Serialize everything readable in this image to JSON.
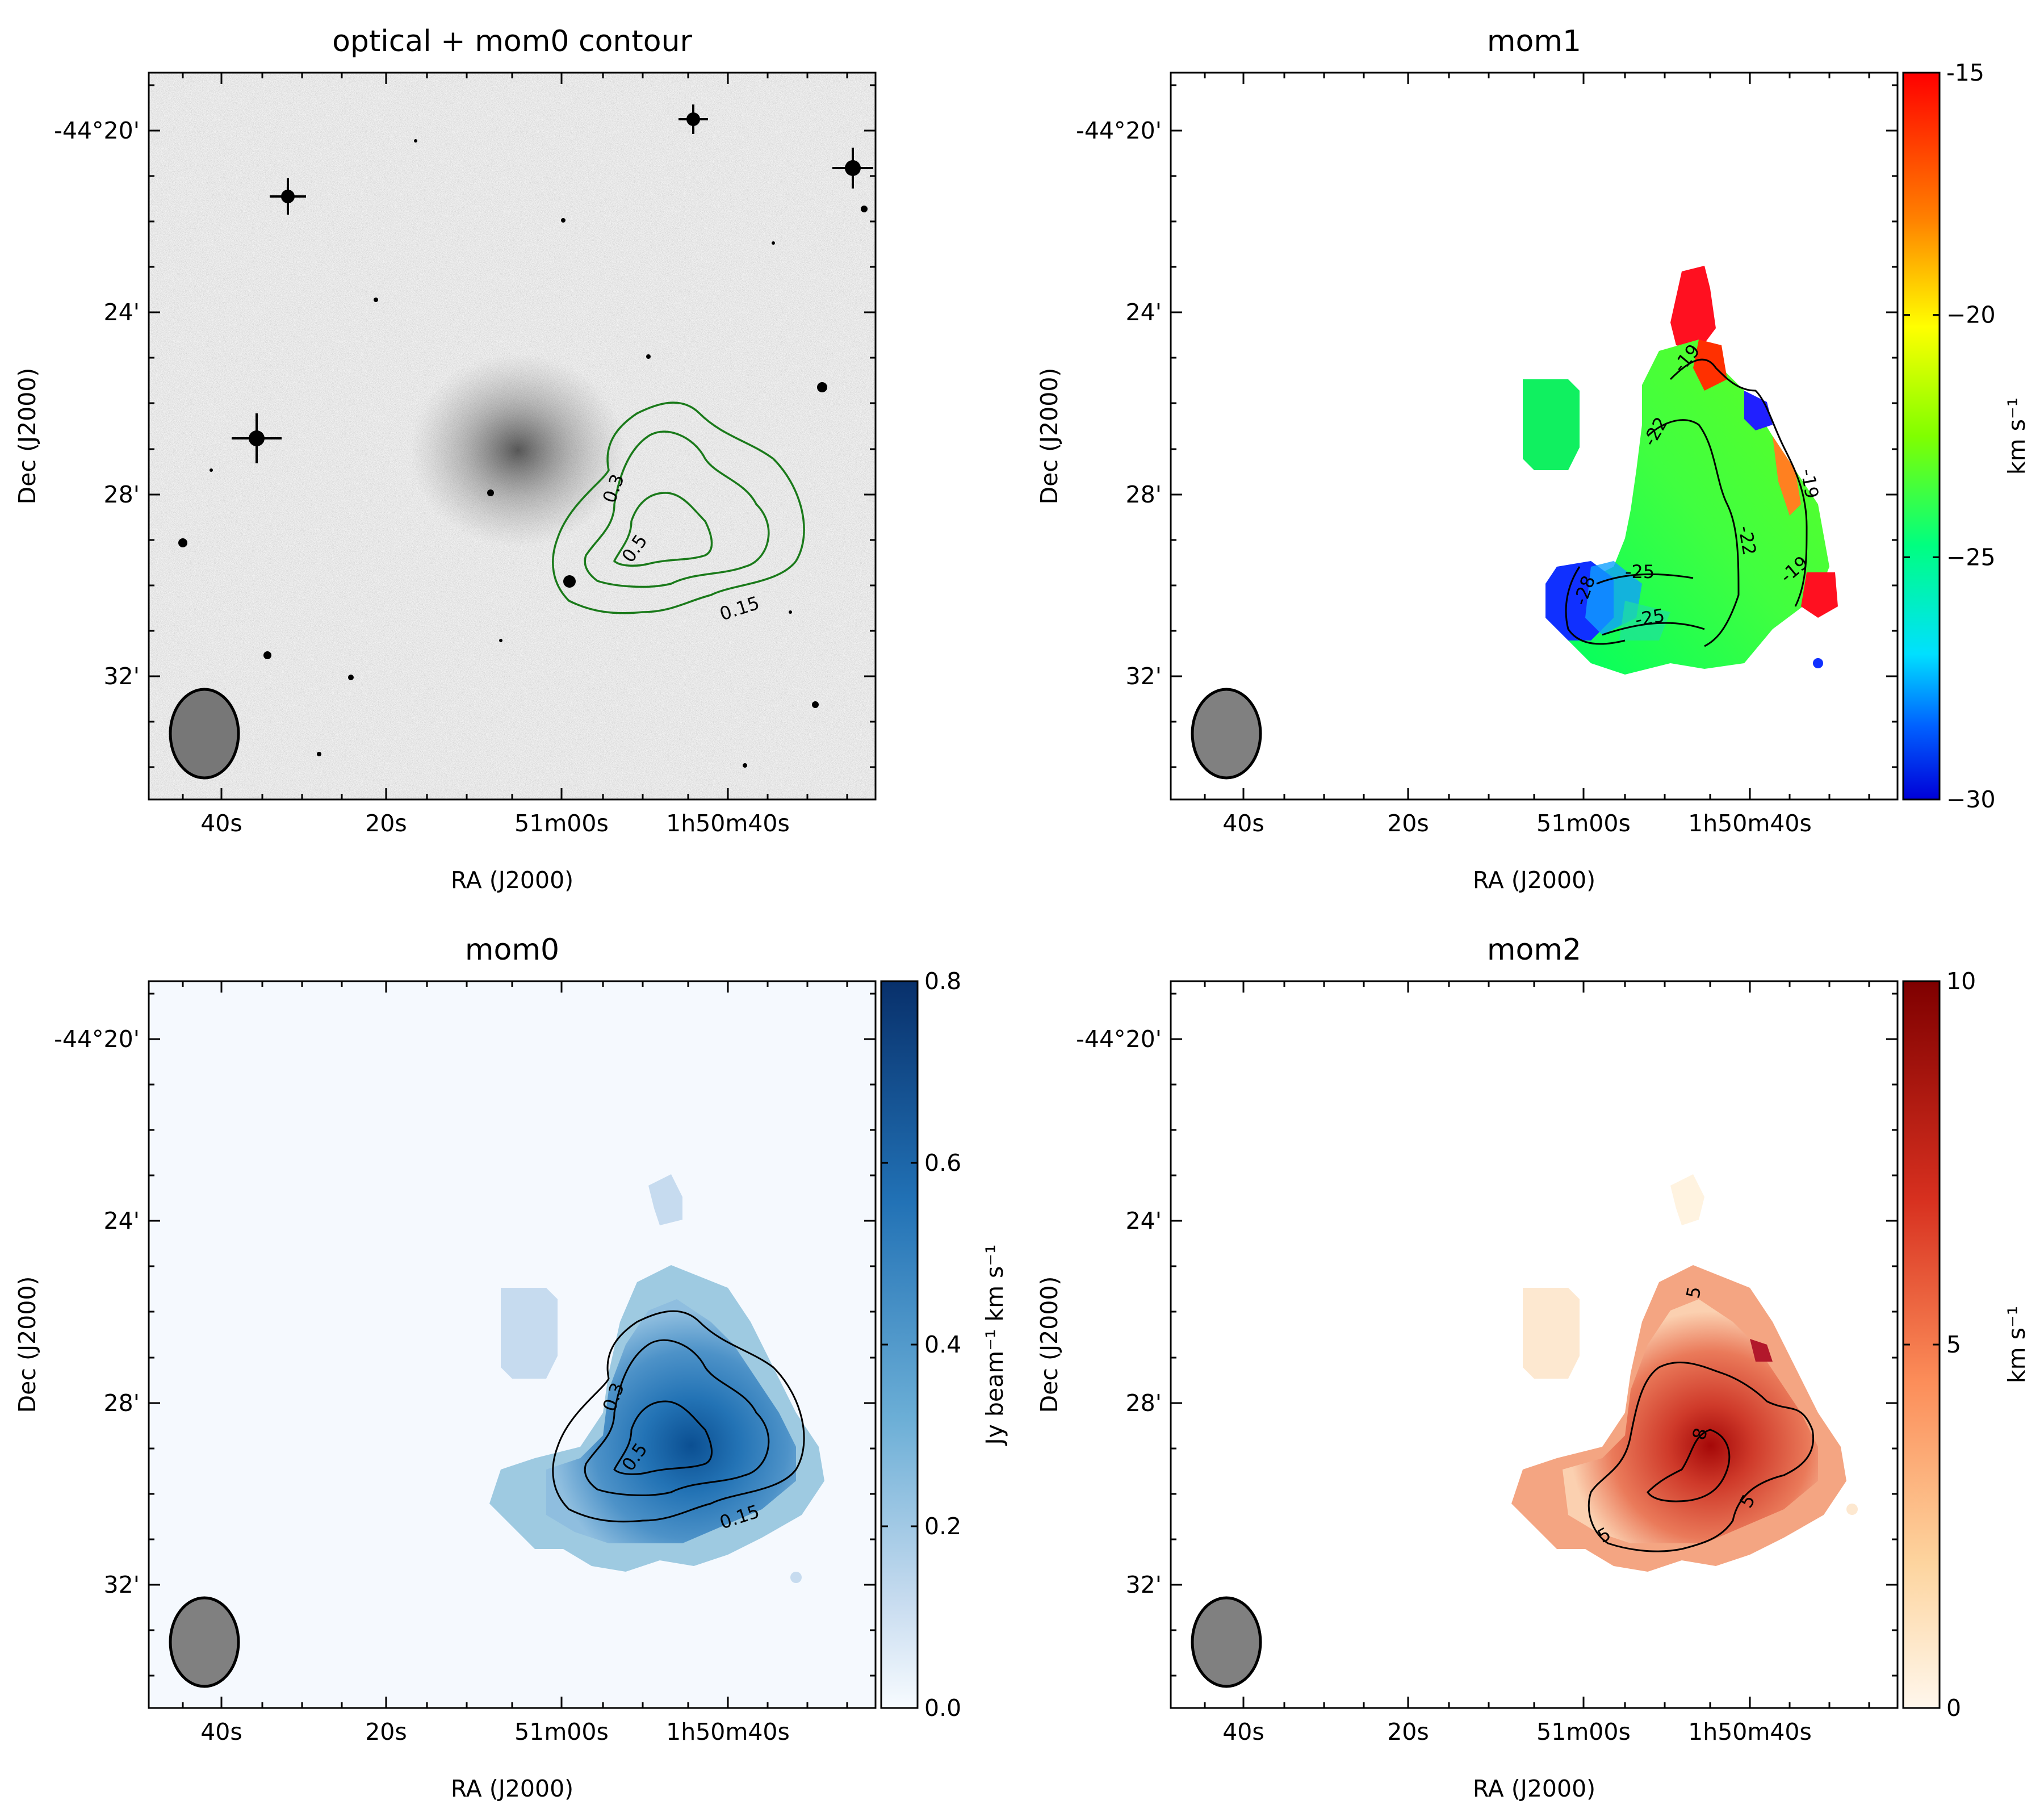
{
  "panels": [
    {
      "id": "optical",
      "title": "optical + mom0 contour",
      "xlabel": "RA (J2000)",
      "ylabel": "Dec (J2000)",
      "xticks": [
        "40s",
        "20s",
        "51m00s",
        "1h50m40s"
      ],
      "yticks": [
        "-44°20'",
        "24'",
        "28'",
        "32'"
      ],
      "contour_levels": [
        "0.15",
        "0.3",
        "0.5"
      ],
      "contour_color": "#1a7a1a",
      "colorbar": null
    },
    {
      "id": "mom1",
      "title": "mom1",
      "xlabel": "RA (J2000)",
      "ylabel": "Dec (J2000)",
      "xticks": [
        "40s",
        "20s",
        "51m00s",
        "1h50m40s"
      ],
      "yticks": [
        "-44°20'",
        "24'",
        "28'",
        "32'"
      ],
      "contour_levels": [
        "-19",
        "-22",
        "-25",
        "-28"
      ],
      "colorbar": {
        "label": "km s⁻¹",
        "ticks": [
          "-15",
          "−20",
          "−25",
          "−30"
        ],
        "range": [
          -30,
          -15
        ],
        "colormap": "jet"
      }
    },
    {
      "id": "mom0",
      "title": "mom0",
      "xlabel": "RA (J2000)",
      "ylabel": "Dec (J2000)",
      "xticks": [
        "40s",
        "20s",
        "51m00s",
        "1h50m40s"
      ],
      "yticks": [
        "-44°20'",
        "24'",
        "28'",
        "32'"
      ],
      "contour_levels": [
        "0.15",
        "0.3",
        "0.5"
      ],
      "colorbar": {
        "label": "Jy beam⁻¹ km s⁻¹",
        "ticks": [
          "0.8",
          "0.6",
          "0.4",
          "0.2",
          "0.0"
        ],
        "range": [
          0.0,
          0.8
        ],
        "colormap": "Blues"
      }
    },
    {
      "id": "mom2",
      "title": "mom2",
      "xlabel": "RA (J2000)",
      "ylabel": "Dec (J2000)",
      "xticks": [
        "40s",
        "20s",
        "51m00s",
        "1h50m40s"
      ],
      "yticks": [
        "-44°20'",
        "24'",
        "28'",
        "32'"
      ],
      "contour_levels": [
        "5",
        "8"
      ],
      "colorbar": {
        "label": "km s⁻¹",
        "ticks": [
          "10",
          "5",
          "0"
        ],
        "range": [
          0,
          10
        ],
        "colormap": "OrRd"
      }
    }
  ],
  "chart_data": [
    {
      "type": "heatmap",
      "title": "optical + mom0 contour",
      "xlabel": "RA (J2000)",
      "ylabel": "Dec (J2000)",
      "x_ticks": [
        "40s",
        "20s",
        "51m00s",
        "1h50m40s"
      ],
      "y_ticks": [
        "-44°20'",
        "24'",
        "28'",
        "32'"
      ],
      "contours": [
        0.15,
        0.3,
        0.5
      ],
      "grid": false
    },
    {
      "type": "heatmap",
      "title": "mom1",
      "xlabel": "RA (J2000)",
      "ylabel": "Dec (J2000)",
      "colorbar_label": "km s⁻¹",
      "color_range": [
        -30,
        -15
      ],
      "colorbar_ticks": [
        -15,
        -20,
        -25,
        -30
      ],
      "contours": [
        -28,
        -25,
        -22,
        -19
      ],
      "grid": false
    },
    {
      "type": "heatmap",
      "title": "mom0",
      "xlabel": "RA (J2000)",
      "ylabel": "Dec (J2000)",
      "colorbar_label": "Jy beam⁻¹ km s⁻¹",
      "color_range": [
        0.0,
        0.8
      ],
      "colorbar_ticks": [
        0.0,
        0.2,
        0.4,
        0.6,
        0.8
      ],
      "contours": [
        0.15,
        0.3,
        0.5
      ],
      "grid": false
    },
    {
      "type": "heatmap",
      "title": "mom2",
      "xlabel": "RA (J2000)",
      "ylabel": "Dec (J2000)",
      "colorbar_label": "km s⁻¹",
      "color_range": [
        0,
        10
      ],
      "colorbar_ticks": [
        0,
        5,
        10
      ],
      "contours": [
        5,
        8
      ],
      "grid": false
    }
  ]
}
